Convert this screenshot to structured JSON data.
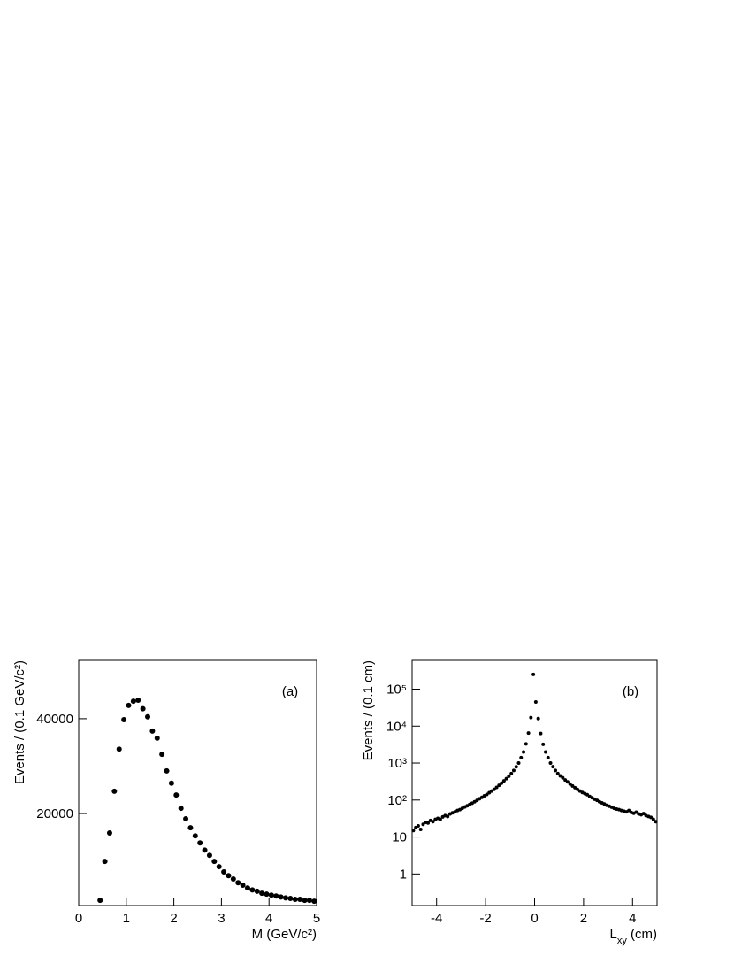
{
  "chart_data": [
    {
      "type": "scatter",
      "annotation": "(a)",
      "x_label": "M (GeV/c²)",
      "y_label": "Events / (0.1 GeV/c²)",
      "color": "#000000",
      "log_y": false,
      "xlim": [
        0,
        5
      ],
      "xticks": [
        0,
        1,
        2,
        3,
        4,
        5
      ],
      "ylim": [
        600,
        52300
      ],
      "yticks": [
        20000,
        40000
      ],
      "x": [
        0.45,
        0.55,
        0.65,
        0.75,
        0.85,
        0.95,
        1.05,
        1.15,
        1.25,
        1.35,
        1.45,
        1.55,
        1.65,
        1.75,
        1.85,
        1.95,
        2.05,
        2.15,
        2.25,
        2.35,
        2.45,
        2.55,
        2.65,
        2.75,
        2.85,
        2.95,
        3.05,
        3.15,
        3.25,
        3.35,
        3.45,
        3.55,
        3.65,
        3.75,
        3.85,
        3.95,
        4.05,
        4.15,
        4.25,
        4.35,
        4.45,
        4.55,
        4.65,
        4.75,
        4.85,
        4.95
      ],
      "values": [
        1700,
        9900,
        15900,
        24700,
        33600,
        39800,
        42800,
        43700,
        43900,
        42100,
        40400,
        37400,
        35900,
        32500,
        29000,
        26400,
        23900,
        21100,
        18900,
        17000,
        15300,
        13800,
        12300,
        11200,
        9900,
        8800,
        7700,
        6900,
        6200,
        5400,
        4900,
        4300,
        3900,
        3600,
        3200,
        3000,
        2800,
        2600,
        2400,
        2200,
        2100,
        1900,
        1900,
        1700,
        1700,
        1500
      ]
    },
    {
      "type": "scatter",
      "annotation": "(b)",
      "x_label": [
        {
          "text": "L"
        },
        {
          "text": "xy",
          "sub": true
        },
        {
          "text": " (cm)"
        }
      ],
      "y_label": "Events / (0.1 cm)",
      "color": "#000000",
      "log_y": true,
      "xlim": [
        -5,
        5
      ],
      "xticks": [
        -4,
        -2,
        0,
        2,
        4
      ],
      "ylim": [
        0.14,
        600000
      ],
      "yticks": [
        1,
        10,
        {
          "value": 100,
          "label": "10²"
        },
        {
          "value": 1000,
          "label": "10³"
        },
        {
          "value": 10000,
          "label": "10⁴"
        },
        {
          "value": 100000,
          "label": "10⁵"
        }
      ],
      "x": [
        -4.95,
        -4.85,
        -4.75,
        -4.65,
        -4.55,
        -4.45,
        -4.35,
        -4.25,
        -4.15,
        -4.05,
        -3.95,
        -3.85,
        -3.75,
        -3.65,
        -3.55,
        -3.45,
        -3.35,
        -3.25,
        -3.15,
        -3.05,
        -2.95,
        -2.85,
        -2.75,
        -2.65,
        -2.55,
        -2.45,
        -2.35,
        -2.25,
        -2.15,
        -2.05,
        -1.95,
        -1.85,
        -1.75,
        -1.65,
        -1.55,
        -1.45,
        -1.35,
        -1.25,
        -1.15,
        -1.05,
        -0.95,
        -0.85,
        -0.75,
        -0.65,
        -0.55,
        -0.45,
        -0.35,
        -0.25,
        -0.15,
        -0.05,
        0.05,
        0.15,
        0.25,
        0.35,
        0.45,
        0.55,
        0.65,
        0.75,
        0.85,
        0.95,
        1.05,
        1.15,
        1.25,
        1.35,
        1.45,
        1.55,
        1.65,
        1.75,
        1.85,
        1.95,
        2.05,
        2.15,
        2.25,
        2.35,
        2.45,
        2.55,
        2.65,
        2.75,
        2.85,
        2.95,
        3.05,
        3.15,
        3.25,
        3.35,
        3.45,
        3.55,
        3.65,
        3.75,
        3.85,
        3.95,
        4.05,
        4.15,
        4.25,
        4.35,
        4.45,
        4.55,
        4.65,
        4.75,
        4.85,
        4.95
      ],
      "values": [
        15,
        18,
        20,
        16,
        22,
        25,
        24,
        28,
        26,
        30,
        32,
        30,
        35,
        38,
        36,
        42,
        45,
        48,
        52,
        55,
        60,
        65,
        70,
        76,
        82,
        90,
        98,
        108,
        118,
        130,
        142,
        158,
        175,
        195,
        220,
        250,
        285,
        330,
        380,
        440,
        520,
        630,
        790,
        1000,
        1400,
        2000,
        3300,
        6500,
        17000,
        250000,
        45000,
        16000,
        6300,
        3200,
        2000,
        1400,
        1000,
        800,
        630,
        520,
        450,
        400,
        350,
        310,
        270,
        240,
        215,
        195,
        175,
        160,
        150,
        140,
        125,
        115,
        105,
        98,
        90,
        84,
        78,
        72,
        68,
        64,
        60,
        57,
        55,
        52,
        50,
        48,
        52,
        46,
        44,
        47,
        42,
        40,
        43,
        38,
        36,
        34,
        30,
        26
      ]
    }
  ]
}
